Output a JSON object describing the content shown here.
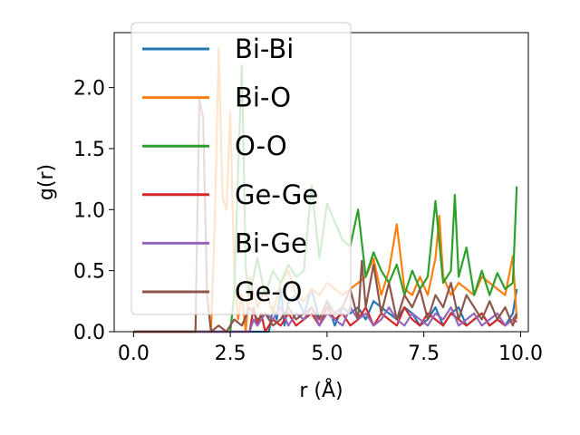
{
  "chart_data": {
    "type": "line",
    "xlabel": "r (Å)",
    "ylabel": "g(r)",
    "xlim": [
      -0.5,
      10.2
    ],
    "ylim": [
      0,
      2.45
    ],
    "xticks": [
      0.0,
      2.5,
      5.0,
      7.5,
      10.0
    ],
    "xtick_labels": [
      "0.0",
      "2.5",
      "5.0",
      "7.5",
      "10.0"
    ],
    "yticks": [
      0.0,
      0.5,
      1.0,
      1.5,
      2.0
    ],
    "ytick_labels": [
      "0.0",
      "0.5",
      "1.0",
      "1.5",
      "2.0"
    ],
    "grid": false,
    "legend_position": "upper-left",
    "series": [
      {
        "name": "Bi-Bi",
        "color": "#1f77b4",
        "x": [
          0,
          3.5,
          3.6,
          3.7,
          3.8,
          3.9,
          4.0,
          4.2,
          4.4,
          4.6,
          4.8,
          5.0,
          5.2,
          5.4,
          5.6,
          5.8,
          6.0,
          6.2,
          6.4,
          6.6,
          6.8,
          7.0,
          7.2,
          7.4,
          7.6,
          7.8,
          8.0,
          8.2,
          8.4,
          8.6,
          8.8,
          9.0,
          9.2,
          9.4,
          9.6,
          9.8,
          9.9
        ],
        "y": [
          0,
          0,
          0.2,
          0.1,
          0.35,
          0.05,
          0.25,
          0.3,
          0.15,
          0.35,
          0.1,
          0.25,
          0.05,
          0.2,
          0.15,
          0.2,
          0.1,
          0.25,
          0.2,
          0.15,
          0.1,
          0.2,
          0.15,
          0.05,
          0.1,
          0.2,
          0.05,
          0.15,
          0.2,
          0.05,
          0.1,
          0.15,
          0.05,
          0.1,
          0.05,
          0.15,
          0.35
        ]
      },
      {
        "name": "Bi-O",
        "color": "#ff7f0e",
        "x": [
          0,
          2.0,
          2.1,
          2.2,
          2.3,
          2.4,
          2.5,
          2.6,
          2.7,
          2.8,
          2.9,
          3.0,
          3.2,
          3.4,
          3.6,
          3.8,
          4.0,
          4.2,
          4.4,
          4.6,
          4.8,
          5.0,
          5.2,
          5.4,
          5.6,
          5.8,
          6.0,
          6.2,
          6.4,
          6.6,
          6.8,
          7.0,
          7.2,
          7.4,
          7.6,
          7.8,
          7.9,
          8.0,
          8.2,
          8.4,
          8.6,
          8.8,
          9.0,
          9.2,
          9.4,
          9.6,
          9.8,
          9.9
        ],
        "y": [
          0,
          0,
          0.9,
          2.32,
          1.1,
          1.0,
          1.8,
          0.5,
          0.1,
          0.3,
          0.0,
          0.45,
          0.2,
          0.35,
          0.15,
          0.4,
          0.5,
          0.3,
          0.25,
          0.35,
          0.3,
          0.4,
          0.35,
          0.3,
          0.35,
          0.4,
          0.45,
          0.6,
          0.3,
          0.5,
          0.88,
          0.35,
          0.3,
          0.45,
          0.3,
          0.6,
          0.95,
          0.45,
          0.3,
          0.4,
          0.35,
          0.3,
          0.45,
          0.4,
          0.35,
          0.3,
          0.62,
          0.1
        ]
      },
      {
        "name": "O-O",
        "color": "#2ca02c",
        "x": [
          0,
          2.5,
          2.6,
          2.7,
          2.8,
          2.9,
          3.0,
          3.2,
          3.4,
          3.6,
          3.8,
          4.0,
          4.2,
          4.4,
          4.6,
          4.8,
          5.0,
          5.2,
          5.4,
          5.6,
          5.8,
          6.0,
          6.2,
          6.4,
          6.6,
          6.8,
          7.0,
          7.2,
          7.4,
          7.6,
          7.8,
          8.0,
          8.2,
          8.3,
          8.4,
          8.6,
          8.8,
          9.0,
          9.2,
          9.4,
          9.6,
          9.8,
          9.9
        ],
        "y": [
          0,
          0,
          0.3,
          1.3,
          2.18,
          0.5,
          0.3,
          0.6,
          0.3,
          0.5,
          0.4,
          0.55,
          0.45,
          0.5,
          1.2,
          0.6,
          1.05,
          0.9,
          0.75,
          0.7,
          1.0,
          0.45,
          0.65,
          0.5,
          0.4,
          0.55,
          0.3,
          0.5,
          0.35,
          0.45,
          1.07,
          0.4,
          0.5,
          1.12,
          0.45,
          0.69,
          0.3,
          0.5,
          0.3,
          0.48,
          0.35,
          0.4,
          1.19
        ]
      },
      {
        "name": "Ge-Ge",
        "color": "#d62728",
        "x": [
          0,
          3.0,
          3.1,
          3.2,
          3.3,
          3.4,
          3.6,
          3.8,
          4.0,
          4.2,
          4.4,
          4.6,
          4.8,
          5.0,
          5.2,
          5.4,
          5.6,
          5.8,
          6.0,
          6.2,
          6.4,
          6.6,
          6.8,
          7.0,
          7.2,
          7.4,
          7.6,
          7.8,
          8.0,
          8.2,
          8.4,
          8.6,
          8.8,
          9.0,
          9.2,
          9.4,
          9.6,
          9.8,
          9.9
        ],
        "y": [
          0,
          0,
          0.2,
          0.05,
          0.15,
          0.0,
          0.1,
          0.05,
          0.15,
          0.05,
          0.1,
          0.15,
          0.05,
          0.2,
          0.1,
          0.15,
          0.05,
          0.1,
          0.2,
          0.05,
          0.15,
          0.1,
          0.05,
          0.2,
          0.1,
          0.05,
          0.15,
          0.1,
          0.05,
          0.15,
          0.1,
          0.05,
          0.1,
          0.15,
          0.05,
          0.1,
          0.05,
          0.1,
          0.08
        ]
      },
      {
        "name": "Bi-Ge",
        "color": "#9467bd",
        "x": [
          0,
          3.0,
          3.1,
          3.2,
          3.4,
          3.6,
          3.8,
          4.0,
          4.2,
          4.4,
          4.6,
          4.8,
          5.0,
          5.2,
          5.4,
          5.6,
          5.8,
          6.0,
          6.2,
          6.4,
          6.6,
          6.8,
          7.0,
          7.2,
          7.4,
          7.6,
          7.8,
          8.0,
          8.2,
          8.4,
          8.6,
          8.8,
          9.0,
          9.2,
          9.4,
          9.6,
          9.8,
          9.9
        ],
        "y": [
          0,
          0,
          0.1,
          0.05,
          0.15,
          0.1,
          0.2,
          0.05,
          0.15,
          0.1,
          0.2,
          0.05,
          0.15,
          0.1,
          0.05,
          0.2,
          0.1,
          0.15,
          0.05,
          0.1,
          0.2,
          0.1,
          0.05,
          0.15,
          0.1,
          0.05,
          0.15,
          0.1,
          0.2,
          0.05,
          0.1,
          0.15,
          0.05,
          0.1,
          0.15,
          0.05,
          0.1,
          0.15
        ]
      },
      {
        "name": "Ge-O",
        "color": "#8c564b",
        "x": [
          0,
          1.6,
          1.7,
          1.8,
          1.9,
          2.0,
          2.2,
          2.4,
          2.6,
          2.8,
          3.0,
          3.2,
          3.4,
          3.6,
          3.8,
          4.0,
          4.2,
          4.4,
          4.6,
          4.8,
          5.0,
          5.2,
          5.4,
          5.6,
          5.8,
          5.9,
          6.0,
          6.2,
          6.4,
          6.6,
          6.8,
          7.0,
          7.2,
          7.4,
          7.6,
          7.8,
          8.0,
          8.2,
          8.4,
          8.6,
          8.8,
          9.0,
          9.2,
          9.4,
          9.6,
          9.8,
          9.9
        ],
        "y": [
          0,
          0,
          1.9,
          1.75,
          0.3,
          0.0,
          0.05,
          0.0,
          0.1,
          0.05,
          0.2,
          0.1,
          0.15,
          0.05,
          0.1,
          0.2,
          0.1,
          0.15,
          0.2,
          0.1,
          0.25,
          0.15,
          0.2,
          0.35,
          0.1,
          0.58,
          0.2,
          0.55,
          0.15,
          0.4,
          0.1,
          0.3,
          0.2,
          0.35,
          0.1,
          0.3,
          0.2,
          0.4,
          0.1,
          0.3,
          0.2,
          0.1,
          0.25,
          0.1,
          0.2,
          0.05,
          0.15
        ]
      }
    ]
  }
}
